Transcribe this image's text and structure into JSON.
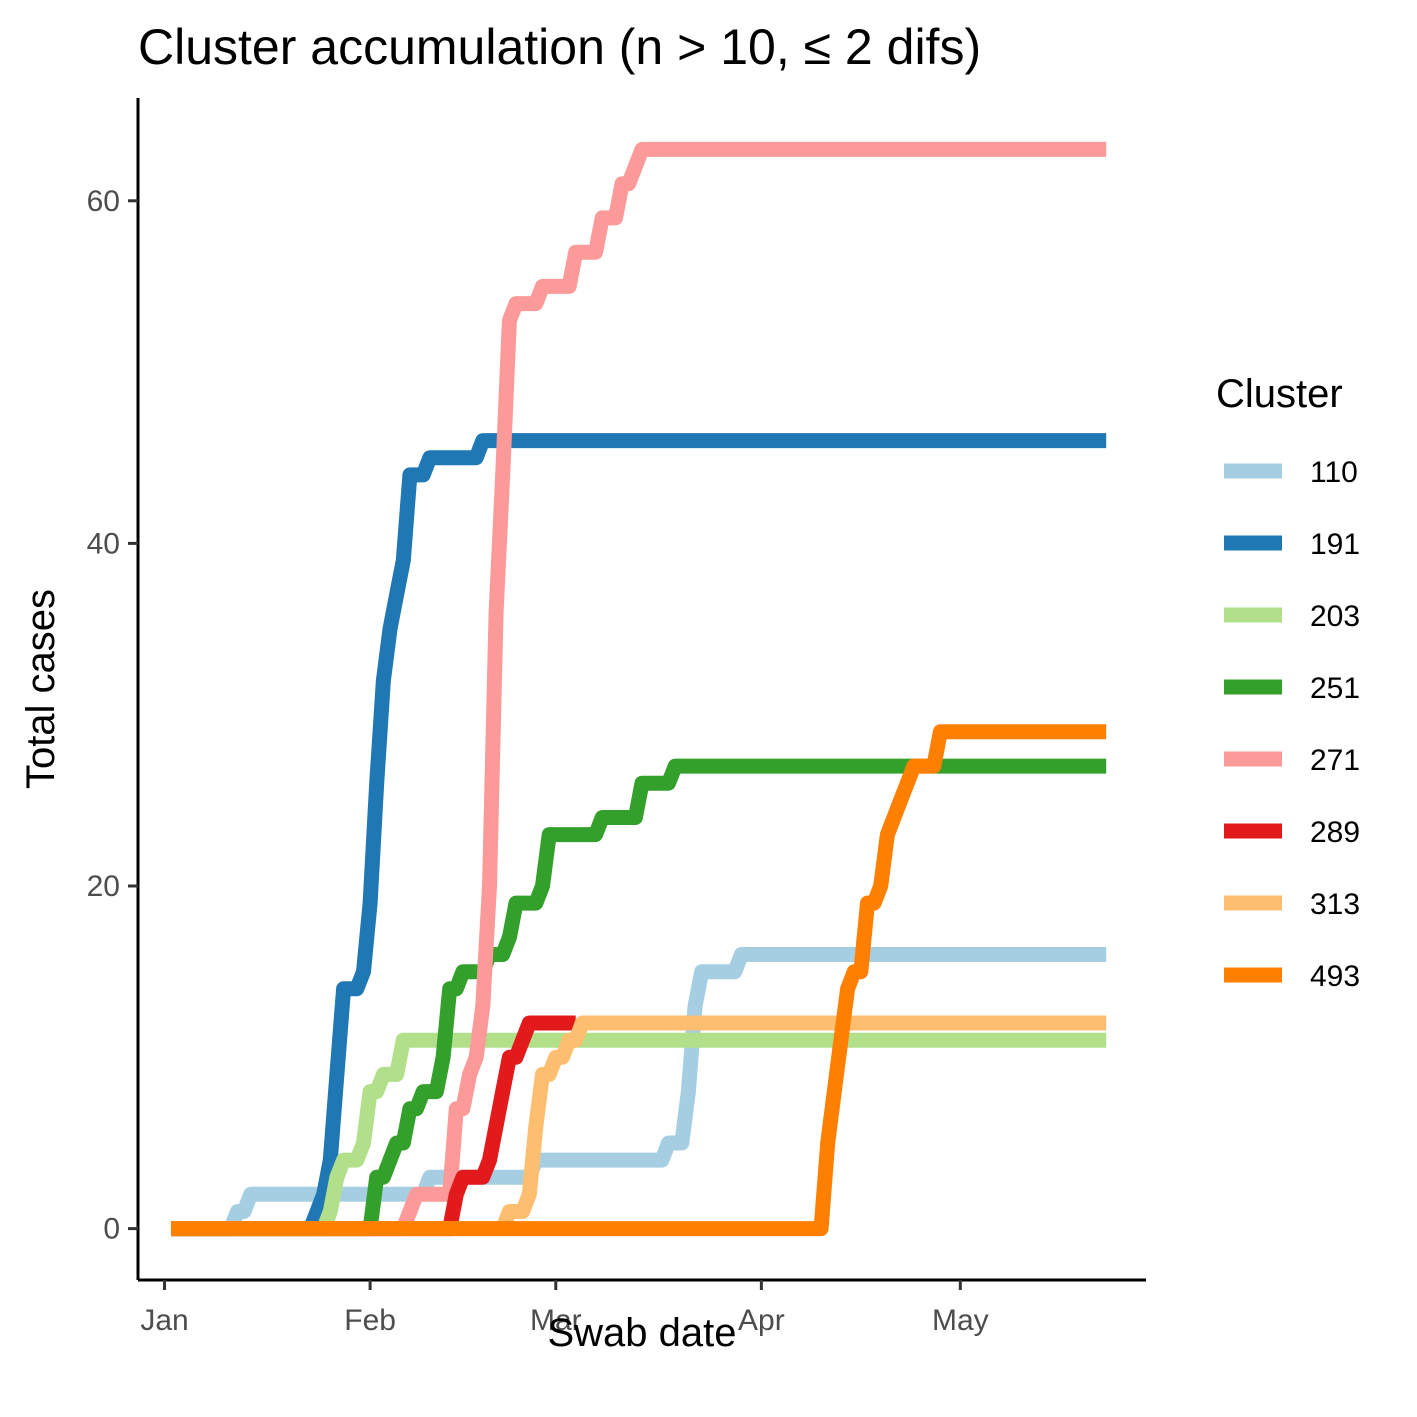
{
  "chart_data": {
    "type": "line",
    "title": "Cluster accumulation (n > 10, ≤ 2 difs)",
    "xlabel": "Swab date",
    "ylabel": "Total cases",
    "x_ticks": [
      "Jan",
      "Feb",
      "Mar",
      "Apr",
      "May"
    ],
    "x_tick_days": [
      1,
      32,
      60,
      91,
      121
    ],
    "xlim_days": [
      -3,
      149
    ],
    "y_ticks": [
      "0",
      "20",
      "40",
      "60"
    ],
    "y_tick_values": [
      0,
      20,
      40,
      60
    ],
    "ylim": [
      -3,
      66
    ],
    "grid": false,
    "legend": {
      "title": "Cluster",
      "position": "right"
    },
    "series": [
      {
        "name": "110",
        "color": "#A6CEE3",
        "points": [
          [
            2,
            0
          ],
          [
            11,
            0
          ],
          [
            12,
            1
          ],
          [
            13,
            1
          ],
          [
            14,
            2
          ],
          [
            35,
            2
          ],
          [
            40,
            2
          ],
          [
            41,
            3
          ],
          [
            56,
            3
          ],
          [
            57,
            4
          ],
          [
            76,
            4
          ],
          [
            77,
            5
          ],
          [
            79,
            5
          ],
          [
            80,
            8
          ],
          [
            81,
            13
          ],
          [
            82,
            15
          ],
          [
            87,
            15
          ],
          [
            88,
            16
          ],
          [
            143,
            16
          ]
        ]
      },
      {
        "name": "191",
        "color": "#1F78B4",
        "points": [
          [
            2,
            0
          ],
          [
            23,
            0
          ],
          [
            24,
            1
          ],
          [
            25,
            2
          ],
          [
            26,
            4
          ],
          [
            27,
            9
          ],
          [
            28,
            14
          ],
          [
            30,
            14
          ],
          [
            31,
            15
          ],
          [
            32,
            19
          ],
          [
            33,
            26
          ],
          [
            34,
            32
          ],
          [
            35,
            35
          ],
          [
            36,
            37
          ],
          [
            37,
            39
          ],
          [
            38,
            44
          ],
          [
            40,
            44
          ],
          [
            41,
            45
          ],
          [
            48,
            45
          ],
          [
            49,
            46
          ],
          [
            143,
            46
          ]
        ]
      },
      {
        "name": "203",
        "color": "#B2DF8A",
        "points": [
          [
            2,
            0
          ],
          [
            25,
            0
          ],
          [
            26,
            1
          ],
          [
            27,
            3
          ],
          [
            28,
            4
          ],
          [
            30,
            4
          ],
          [
            31,
            5
          ],
          [
            32,
            8
          ],
          [
            33,
            8
          ],
          [
            34,
            9
          ],
          [
            36,
            9
          ],
          [
            37,
            11
          ],
          [
            143,
            11
          ]
        ]
      },
      {
        "name": "251",
        "color": "#33A02C",
        "points": [
          [
            2,
            0
          ],
          [
            32,
            0
          ],
          [
            33,
            3
          ],
          [
            34,
            3
          ],
          [
            35,
            4
          ],
          [
            36,
            5
          ],
          [
            37,
            5
          ],
          [
            38,
            7
          ],
          [
            39,
            7
          ],
          [
            40,
            8
          ],
          [
            42,
            8
          ],
          [
            43,
            10
          ],
          [
            44,
            14
          ],
          [
            45,
            14
          ],
          [
            46,
            15
          ],
          [
            49,
            15
          ],
          [
            50,
            16
          ],
          [
            52,
            16
          ],
          [
            53,
            17
          ],
          [
            54,
            19
          ],
          [
            57,
            19
          ],
          [
            58,
            20
          ],
          [
            59,
            23
          ],
          [
            66,
            23
          ],
          [
            67,
            24
          ],
          [
            72,
            24
          ],
          [
            73,
            26
          ],
          [
            77,
            26
          ],
          [
            78,
            27
          ],
          [
            143,
            27
          ]
        ]
      },
      {
        "name": "271",
        "color": "#FB9A99",
        "points": [
          [
            2,
            0
          ],
          [
            37,
            0
          ],
          [
            38,
            1
          ],
          [
            39,
            2
          ],
          [
            44,
            2
          ],
          [
            45,
            7
          ],
          [
            46,
            7
          ],
          [
            47,
            9
          ],
          [
            48,
            10
          ],
          [
            49,
            13
          ],
          [
            50,
            20
          ],
          [
            51,
            36
          ],
          [
            52,
            44
          ],
          [
            53,
            53
          ],
          [
            54,
            54
          ],
          [
            57,
            54
          ],
          [
            58,
            55
          ],
          [
            62,
            55
          ],
          [
            63,
            57
          ],
          [
            66,
            57
          ],
          [
            67,
            59
          ],
          [
            69,
            59
          ],
          [
            70,
            61
          ],
          [
            71,
            61
          ],
          [
            73,
            63
          ],
          [
            143,
            63
          ]
        ]
      },
      {
        "name": "289",
        "color": "#E31A1C",
        "points": [
          [
            2,
            0
          ],
          [
            44,
            0
          ],
          [
            45,
            2
          ],
          [
            46,
            3
          ],
          [
            49,
            3
          ],
          [
            50,
            4
          ],
          [
            51,
            6
          ],
          [
            52,
            8
          ],
          [
            53,
            10
          ],
          [
            54,
            10
          ],
          [
            55,
            11
          ],
          [
            56,
            12
          ],
          [
            63,
            12
          ]
        ]
      },
      {
        "name": "313",
        "color": "#FDBF6F",
        "points": [
          [
            2,
            0
          ],
          [
            52,
            0
          ],
          [
            53,
            1
          ],
          [
            55,
            1
          ],
          [
            56,
            2
          ],
          [
            57,
            6
          ],
          [
            58,
            9
          ],
          [
            59,
            9
          ],
          [
            60,
            10
          ],
          [
            61,
            10
          ],
          [
            62,
            11
          ],
          [
            63,
            11
          ],
          [
            64,
            12
          ],
          [
            143,
            12
          ]
        ]
      },
      {
        "name": "493",
        "color": "#FF7F00",
        "points": [
          [
            2,
            0
          ],
          [
            100,
            0
          ],
          [
            101,
            5
          ],
          [
            102,
            8
          ],
          [
            103,
            11
          ],
          [
            104,
            14
          ],
          [
            105,
            15
          ],
          [
            106,
            15
          ],
          [
            107,
            19
          ],
          [
            108,
            19
          ],
          [
            109,
            20
          ],
          [
            110,
            23
          ],
          [
            111,
            24
          ],
          [
            112,
            25
          ],
          [
            113,
            26
          ],
          [
            114,
            27
          ],
          [
            117,
            27
          ],
          [
            118,
            29
          ],
          [
            143,
            29
          ]
        ]
      }
    ]
  }
}
